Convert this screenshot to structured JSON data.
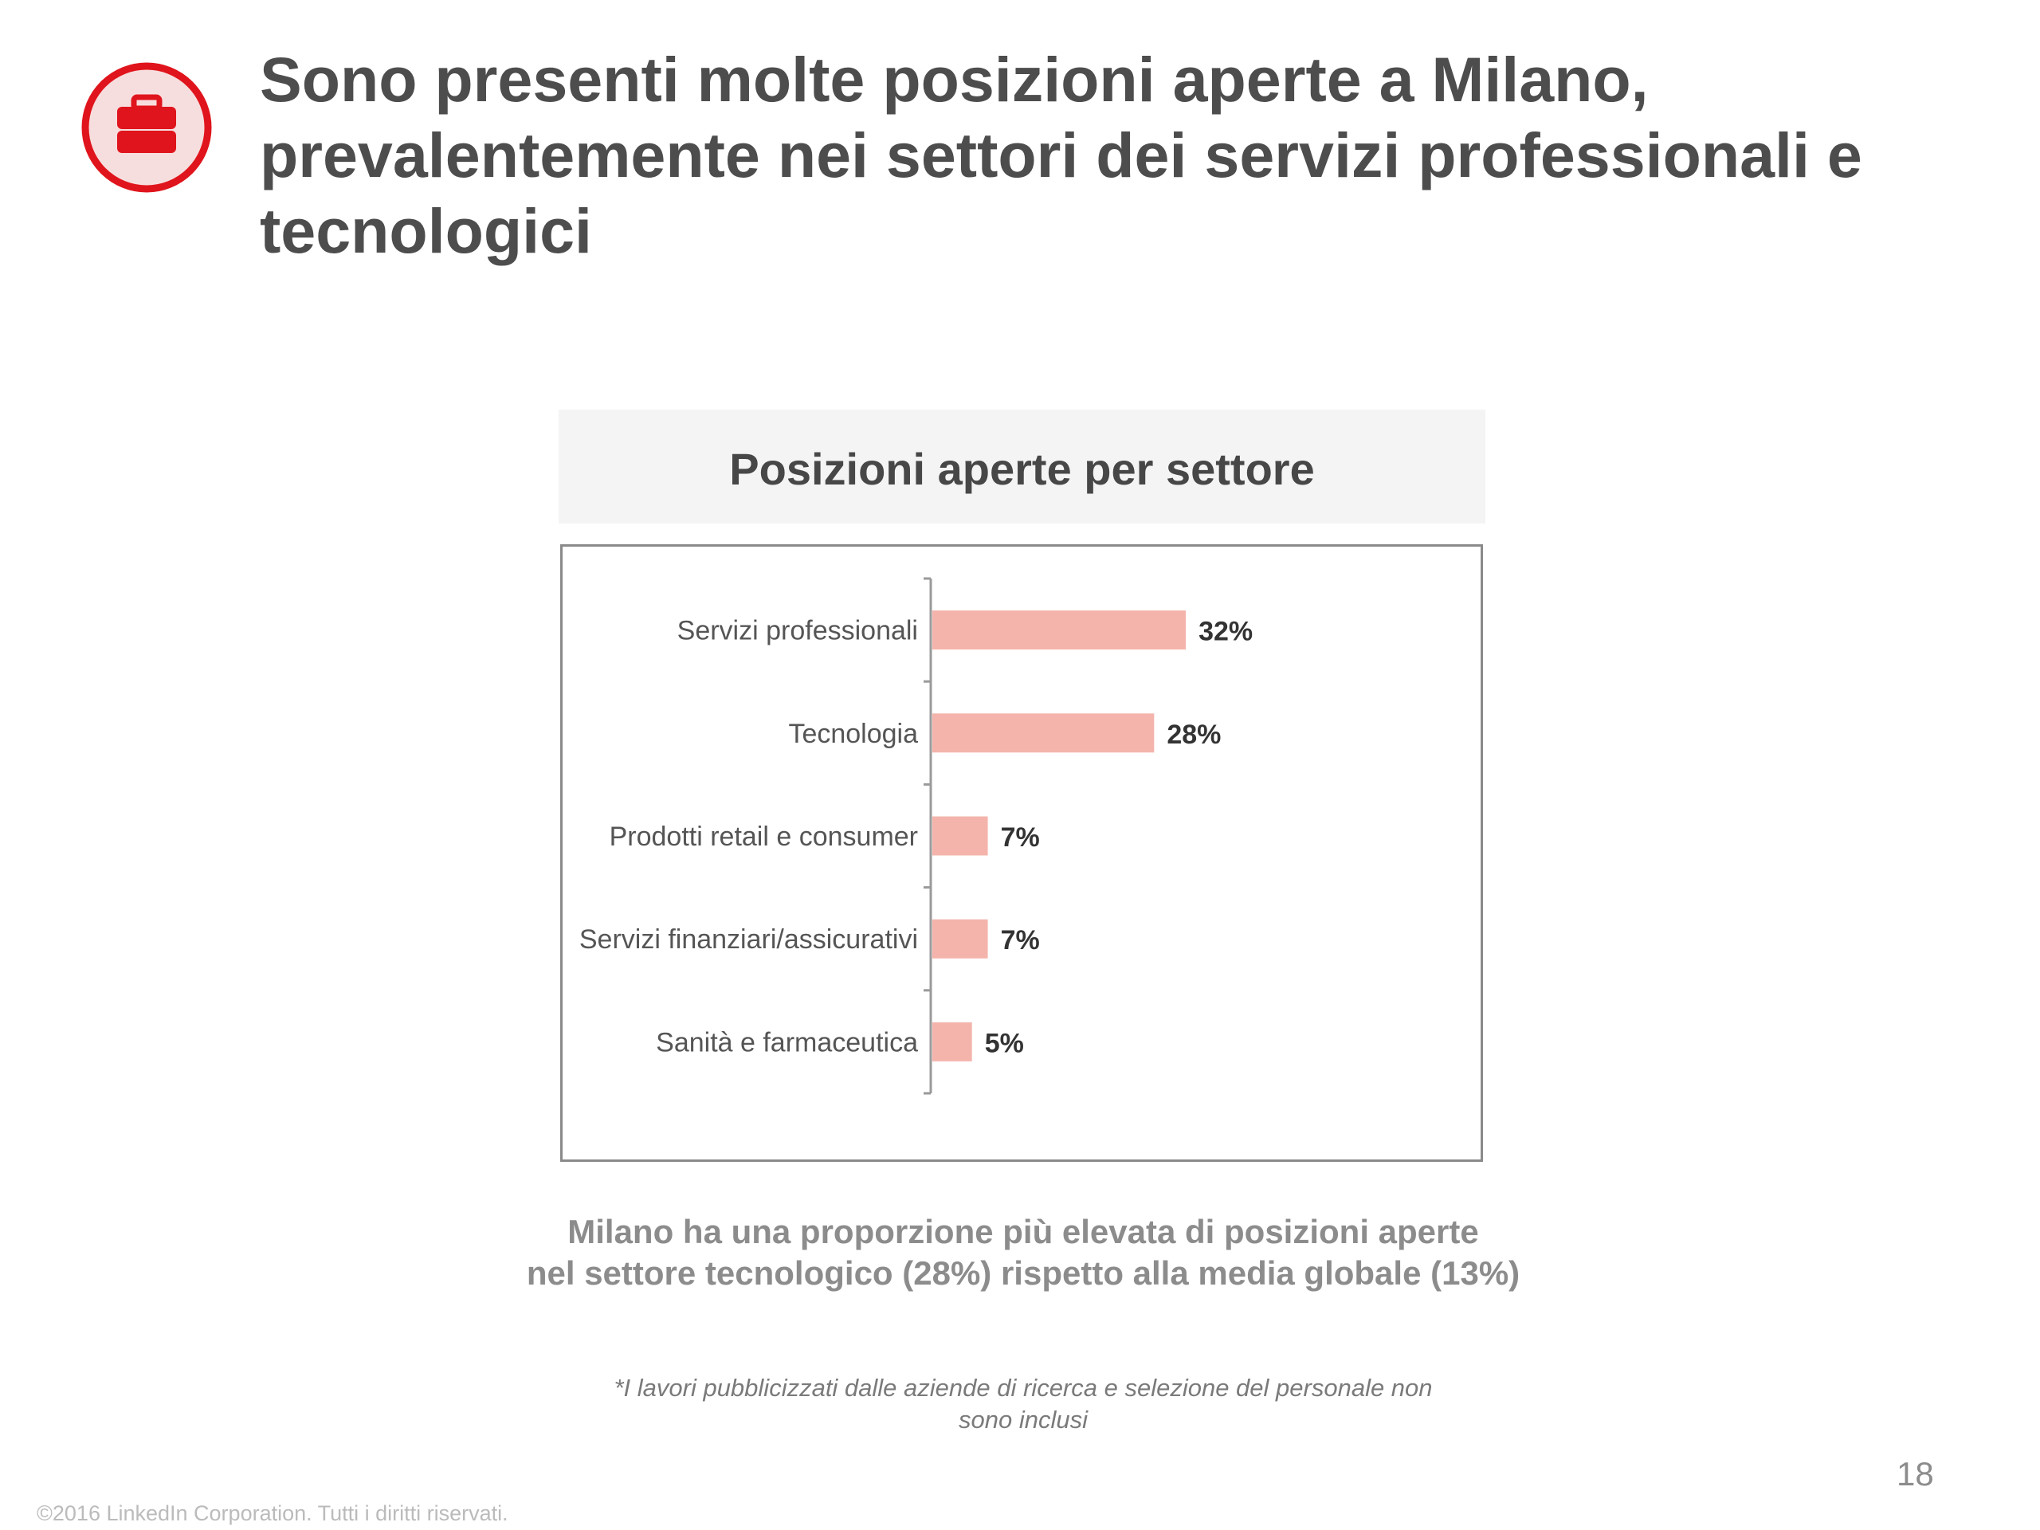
{
  "slide": {
    "title": "Sono presenti molte posizioni aperte a Milano, prevalentemente nei settori dei servizi professionali e tecnologici",
    "icon": "briefcase-icon",
    "chart_title": "Posizioni aperte per settore",
    "takeaway_line1": "Milano ha una proporzione più elevata di posizioni aperte",
    "takeaway_line2": "nel settore tecnologico (28%) rispetto alla media globale (13%)",
    "footnote_line1": "*I lavori pubblicizzati dalle aziende di ricerca e selezione del personale non",
    "footnote_line2": "sono inclusi",
    "page_number": "18",
    "copyright": "©2016 LinkedIn Corporation. Tutti i diritti riservati."
  },
  "colors": {
    "accent_red": "#e0141c",
    "icon_circle_fill": "#f7dede",
    "bar_fill": "#f4b4ab",
    "title_text": "#4d4d4d"
  },
  "chart_data": {
    "type": "bar",
    "orientation": "horizontal",
    "title": "Posizioni aperte per settore",
    "categories": [
      "Servizi professionali",
      "Tecnologia",
      "Prodotti retail e consumer",
      "Servizi finanziari/assicurativi",
      "Sanità e farmaceutica"
    ],
    "values": [
      32,
      28,
      7,
      7,
      5
    ],
    "value_labels": [
      "32%",
      "28%",
      "7%",
      "7%",
      "5%"
    ],
    "unit": "%",
    "grid": false,
    "legend": "none"
  }
}
